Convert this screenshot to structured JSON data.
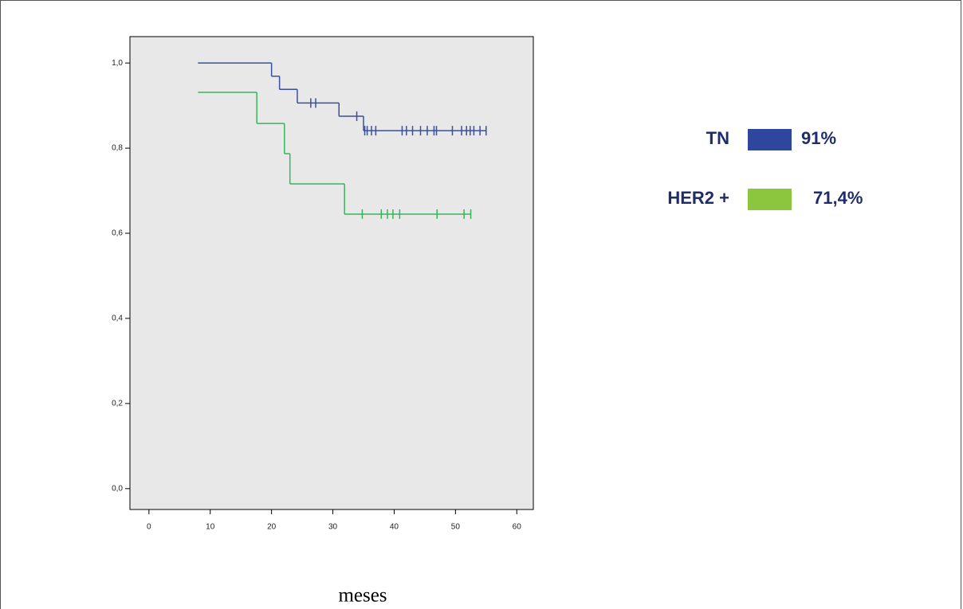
{
  "chart_data": {
    "type": "step",
    "x_label": "meses",
    "xlim": [
      -3.1,
      62.7
    ],
    "xticks": [
      0,
      10,
      20,
      30,
      40,
      50,
      60
    ],
    "ylim": [
      -0.049,
      1.062
    ],
    "yticks": [
      {
        "value": 0,
        "label": "0,0"
      },
      {
        "value": 0.2,
        "label": "0,2"
      },
      {
        "value": 0.4,
        "label": "0,4"
      },
      {
        "value": 0.6,
        "label": "0,6"
      },
      {
        "value": 0.8,
        "label": "0,8"
      },
      {
        "value": 1,
        "label": "1,0"
      }
    ],
    "background": "#e8e8e8",
    "series": [
      {
        "name": "TN",
        "color": "#3a4f9f",
        "legend_color": "#2e479c",
        "legend_value": "91%",
        "x": [
          8,
          20,
          21.3,
          24.2,
          31,
          35,
          55
        ],
        "values": [
          1.0,
          0.969,
          0.938,
          0.906,
          0.875,
          0.841,
          0.841
        ],
        "censored_x": [
          26.4,
          27.2,
          33.9,
          35.2,
          35.6,
          36.3,
          37.0,
          41.3,
          42.0,
          43.0,
          44.3,
          45.4,
          46.5,
          46.9,
          49.5,
          51.0,
          51.8,
          52.4,
          53.0,
          54.0,
          55.0
        ],
        "censored_values": [
          0.906,
          0.906,
          0.875,
          0.841,
          0.841,
          0.841,
          0.841,
          0.841,
          0.841,
          0.841,
          0.841,
          0.841,
          0.841,
          0.841,
          0.841,
          0.841,
          0.841,
          0.841,
          0.841,
          0.841,
          0.841
        ]
      },
      {
        "name": "HER2 +",
        "color": "#3cb35c",
        "legend_color": "#8cc63f",
        "legend_value": "71,4%",
        "x": [
          8,
          17.6,
          22.1,
          23,
          31.9,
          52.5
        ],
        "values": [
          0.931,
          0.858,
          0.787,
          0.716,
          0.645,
          0.645
        ],
        "censored_x": [
          34.8,
          37.9,
          38.9,
          39.8,
          40.9,
          47.0,
          51.4,
          52.5
        ],
        "censored_values": [
          0.645,
          0.645,
          0.645,
          0.645,
          0.645,
          0.645,
          0.645,
          0.645
        ]
      }
    ]
  }
}
